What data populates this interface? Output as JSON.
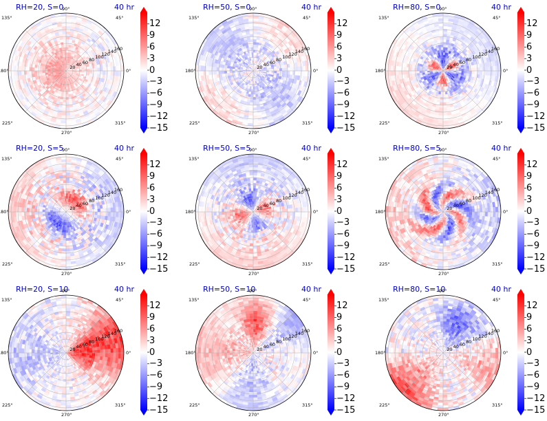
{
  "chart_data": {
    "type": "heatmap",
    "layout": {
      "rows": 3,
      "cols": 3
    },
    "projection": "polar",
    "colormap": "bwr",
    "color_range": [
      -15,
      15
    ],
    "colorbar_ticks": [
      "12",
      "9",
      "6",
      "3",
      "0",
      "−3",
      "−6",
      "−9",
      "−12",
      "−15"
    ],
    "colorbar_tick_values": [
      12,
      9,
      6,
      3,
      0,
      -3,
      -6,
      -9,
      -12,
      -15
    ],
    "angular_labels": [
      "0°",
      "45°",
      "90°",
      "135°",
      "180°",
      "225°",
      "270°",
      "315°"
    ],
    "radial_labels": [
      "20",
      "40",
      "60",
      "80",
      "100",
      "120",
      "140",
      "160"
    ],
    "panels": [
      {
        "title": "RH=20, S=0",
        "time": "40 hr",
        "pattern": "warm-center-weak"
      },
      {
        "title": "RH=50, S=0",
        "time": "40 hr",
        "pattern": "weak-mixed"
      },
      {
        "title": "RH=80, S=0",
        "time": "40 hr",
        "pattern": "strong-core-ring"
      },
      {
        "title": "RH=20, S=5",
        "time": "40 hr",
        "pattern": "core-dipole"
      },
      {
        "title": "RH=50, S=5",
        "time": "40 hr",
        "pattern": "core-mixed"
      },
      {
        "title": "RH=80, S=5",
        "time": "40 hr",
        "pattern": "spiral-ring"
      },
      {
        "title": "RH=20, S=10",
        "time": "40 hr",
        "pattern": "east-positive"
      },
      {
        "title": "RH=50, S=10",
        "time": "40 hr",
        "pattern": "north-positive"
      },
      {
        "title": "RH=80, S=10",
        "time": "40 hr",
        "pattern": "southwest-positive"
      }
    ]
  }
}
